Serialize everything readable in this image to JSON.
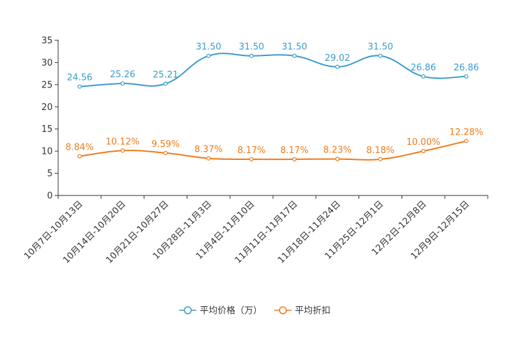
{
  "chart_data": {
    "type": "line",
    "title": "",
    "xlabel": "",
    "ylabel": "",
    "ylim": [
      0,
      35
    ],
    "yticks": [
      0,
      5,
      10,
      15,
      20,
      25,
      30,
      35
    ],
    "grid": false,
    "legend_position": "bottom-center",
    "categories": [
      "10月7日-10月13日",
      "10月14日-10月20日",
      "10月21日-10月27日",
      "10月28日-11月3日",
      "11月4日-11月10日",
      "11月11日-11月17日",
      "11月18日-11月24日",
      "11月25日-12月1日",
      "12月2日-12月8日",
      "12月9日-12月15日"
    ],
    "series": [
      {
        "name": "平均价格（万）",
        "color": "#3b9ccb",
        "values": [
          24.56,
          25.26,
          25.21,
          31.5,
          31.5,
          31.5,
          29.02,
          31.5,
          26.86,
          26.86
        ],
        "labels": [
          "24.56",
          "25.26",
          "25.21",
          "31.50",
          "31.50",
          "31.50",
          "29.02",
          "31.50",
          "26.86",
          "26.86"
        ]
      },
      {
        "name": "平均折扣",
        "color": "#f07a1a",
        "values": [
          8.84,
          10.12,
          9.59,
          8.37,
          8.17,
          8.17,
          8.23,
          8.18,
          10.0,
          12.28
        ],
        "labels": [
          "8.84%",
          "10.12%",
          "9.59%",
          "8.37%",
          "8.17%",
          "8.17%",
          "8.23%",
          "8.18%",
          "10.00%",
          "12.28%"
        ]
      }
    ]
  }
}
